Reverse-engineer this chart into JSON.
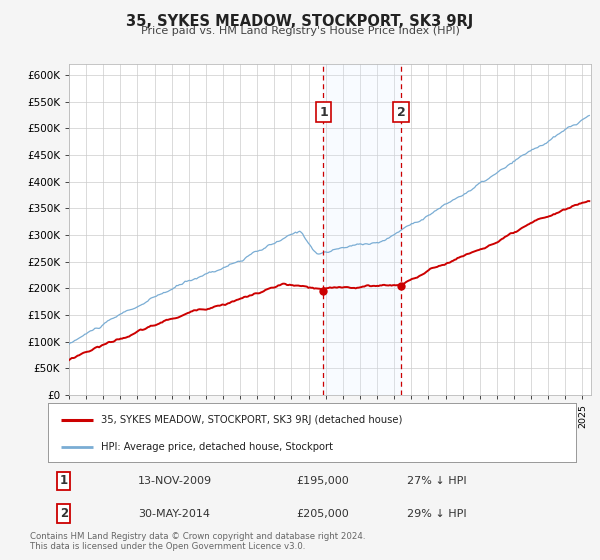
{
  "title": "35, SYKES MEADOW, STOCKPORT, SK3 9RJ",
  "subtitle": "Price paid vs. HM Land Registry's House Price Index (HPI)",
  "xlim_start": 1995.0,
  "xlim_end": 2025.5,
  "ylim_min": 0,
  "ylim_max": 620000,
  "yticks": [
    0,
    50000,
    100000,
    150000,
    200000,
    250000,
    300000,
    350000,
    400000,
    450000,
    500000,
    550000,
    600000
  ],
  "ytick_labels": [
    "£0",
    "£50K",
    "£100K",
    "£150K",
    "£200K",
    "£250K",
    "£300K",
    "£350K",
    "£400K",
    "£450K",
    "£500K",
    "£550K",
    "£600K"
  ],
  "sale1_x": 2009.87,
  "sale1_y": 195000,
  "sale1_label": "1",
  "sale1_date": "13-NOV-2009",
  "sale1_price": "£195,000",
  "sale1_hpi": "27% ↓ HPI",
  "sale2_x": 2014.41,
  "sale2_y": 205000,
  "sale2_label": "2",
  "sale2_date": "30-MAY-2014",
  "sale2_price": "£205,000",
  "sale2_hpi": "29% ↓ HPI",
  "line_color_red": "#cc0000",
  "line_color_blue": "#7aadd4",
  "shade_color": "#ddeeff",
  "dashed_line_color": "#cc0000",
  "legend_label_red": "35, SYKES MEADOW, STOCKPORT, SK3 9RJ (detached house)",
  "legend_label_blue": "HPI: Average price, detached house, Stockport",
  "footer1": "Contains HM Land Registry data © Crown copyright and database right 2024.",
  "footer2": "This data is licensed under the Open Government Licence v3.0.",
  "bg_color": "#f5f5f5",
  "plot_bg_color": "#ffffff",
  "grid_color": "#cccccc"
}
